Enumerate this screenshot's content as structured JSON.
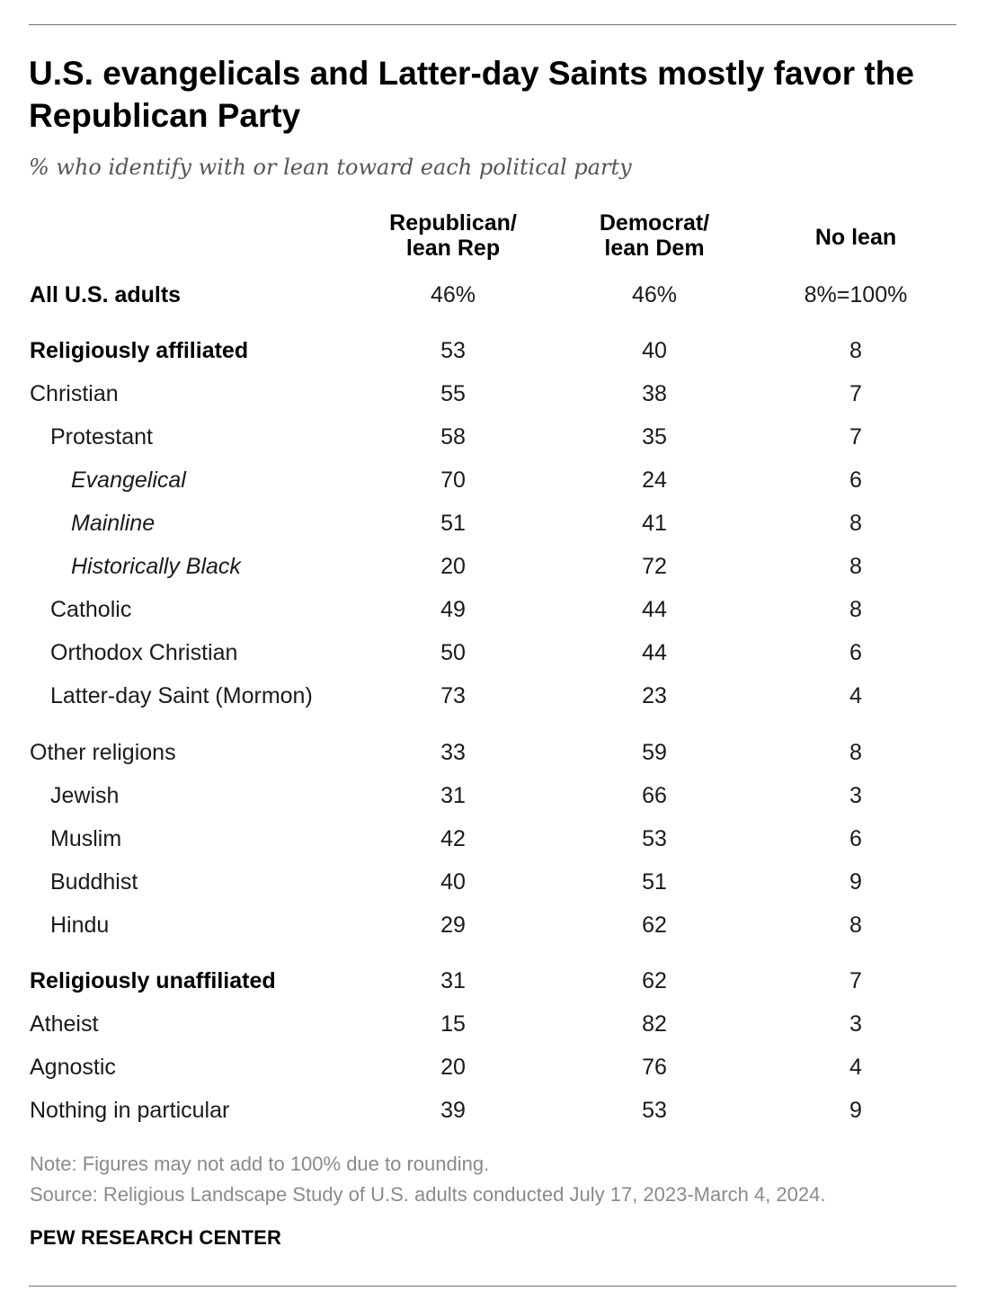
{
  "title": "U.S. evangelicals and Latter-day Saints mostly favor the Republican Party",
  "subtitle": "% who identify with or lean toward each political party",
  "columns": {
    "rep": [
      "Republican/",
      "lean Rep"
    ],
    "dem": [
      "Democrat/",
      "lean Dem"
    ],
    "none": [
      "No lean"
    ]
  },
  "rows": [
    {
      "label": "All U.S. adults",
      "rep": "46%",
      "dem": "46%",
      "none": "8%=100%",
      "level": 0,
      "bold": true
    },
    {
      "label": "Religiously affiliated",
      "rep": "53",
      "dem": "40",
      "none": "8",
      "level": 0,
      "bold": true
    },
    {
      "label": "Christian",
      "rep": "55",
      "dem": "38",
      "none": "7",
      "level": 0,
      "bold": false
    },
    {
      "label": "Protestant",
      "rep": "58",
      "dem": "35",
      "none": "7",
      "level": 1,
      "bold": false
    },
    {
      "label": "Evangelical",
      "rep": "70",
      "dem": "24",
      "none": "6",
      "level": 2,
      "bold": false
    },
    {
      "label": "Mainline",
      "rep": "51",
      "dem": "41",
      "none": "8",
      "level": 2,
      "bold": false
    },
    {
      "label": "Historically Black",
      "rep": "20",
      "dem": "72",
      "none": "8",
      "level": 2,
      "bold": false
    },
    {
      "label": "Catholic",
      "rep": "49",
      "dem": "44",
      "none": "8",
      "level": 1,
      "bold": false
    },
    {
      "label": "Orthodox Christian",
      "rep": "50",
      "dem": "44",
      "none": "6",
      "level": 1,
      "bold": false
    },
    {
      "label": "Latter-day Saint (Mormon)",
      "rep": "73",
      "dem": "23",
      "none": "4",
      "level": 1,
      "bold": false
    },
    {
      "label": "Other religions",
      "rep": "33",
      "dem": "59",
      "none": "8",
      "level": 0,
      "bold": false
    },
    {
      "label": "Jewish",
      "rep": "31",
      "dem": "66",
      "none": "3",
      "level": 1,
      "bold": false
    },
    {
      "label": "Muslim",
      "rep": "42",
      "dem": "53",
      "none": "6",
      "level": 1,
      "bold": false
    },
    {
      "label": "Buddhist",
      "rep": "40",
      "dem": "51",
      "none": "9",
      "level": 1,
      "bold": false
    },
    {
      "label": "Hindu",
      "rep": "29",
      "dem": "62",
      "none": "8",
      "level": 1,
      "bold": false
    },
    {
      "label": "Religiously unaffiliated",
      "rep": "31",
      "dem": "62",
      "none": "7",
      "level": 0,
      "bold": true
    },
    {
      "label": "Atheist",
      "rep": "15",
      "dem": "82",
      "none": "3",
      "level": 0,
      "bold": false
    },
    {
      "label": "Agnostic",
      "rep": "20",
      "dem": "76",
      "none": "4",
      "level": 0,
      "bold": false
    },
    {
      "label": "Nothing in particular",
      "rep": "39",
      "dem": "53",
      "none": "9",
      "level": 0,
      "bold": false
    }
  ],
  "note": "Note: Figures may not add to 100% due to rounding.",
  "source": "Source: Religious Landscape Study of U.S. adults conducted July 17, 2023-March 4, 2024.",
  "logo": "PEW RESEARCH CENTER",
  "chart_data": {
    "type": "table",
    "title": "U.S. evangelicals and Latter-day Saints mostly favor the Republican Party",
    "subtitle": "% who identify with or lean toward each political party",
    "columns": [
      "Republican/lean Rep",
      "Democrat/lean Dem",
      "No lean"
    ],
    "categories": [
      "All U.S. adults",
      "Religiously affiliated",
      "Christian",
      "Protestant",
      "Evangelical",
      "Mainline",
      "Historically Black",
      "Catholic",
      "Orthodox Christian",
      "Latter-day Saint (Mormon)",
      "Other religions",
      "Jewish",
      "Muslim",
      "Buddhist",
      "Hindu",
      "Religiously unaffiliated",
      "Atheist",
      "Agnostic",
      "Nothing in particular"
    ],
    "series": [
      {
        "name": "Republican/lean Rep",
        "values": [
          46,
          53,
          55,
          58,
          70,
          51,
          20,
          49,
          50,
          73,
          33,
          31,
          42,
          40,
          29,
          31,
          15,
          20,
          39
        ]
      },
      {
        "name": "Democrat/lean Dem",
        "values": [
          46,
          40,
          38,
          35,
          24,
          41,
          72,
          44,
          44,
          23,
          59,
          66,
          53,
          51,
          62,
          62,
          82,
          76,
          53
        ]
      },
      {
        "name": "No lean",
        "values": [
          8,
          8,
          7,
          7,
          6,
          8,
          8,
          8,
          6,
          4,
          8,
          3,
          6,
          9,
          8,
          7,
          3,
          4,
          9
        ]
      }
    ]
  }
}
